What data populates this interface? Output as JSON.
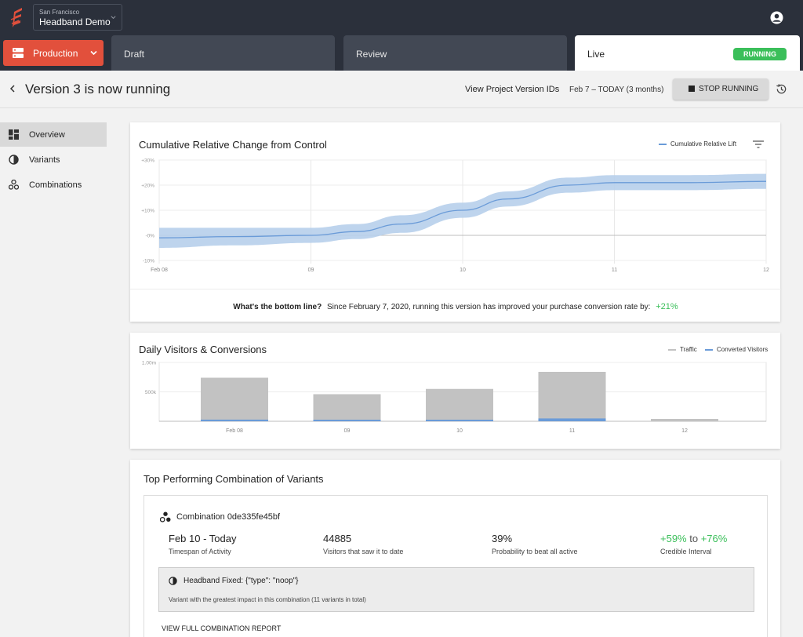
{
  "app": {
    "project_city": "San Francisco",
    "project_name": "Headband Demo",
    "environment": "Production"
  },
  "stages": {
    "draft": "Draft",
    "review": "Review",
    "live": "Live",
    "running_badge": "RUNNING"
  },
  "header": {
    "title": "Version 3 is now running",
    "view_ids": "View Project Version IDs",
    "date_range": "Feb 7 – TODAY (3 months)",
    "stop_button": "STOP RUNNING"
  },
  "sidebar": {
    "items": [
      {
        "label": "Overview",
        "icon": "dashboard-icon"
      },
      {
        "label": "Variants",
        "icon": "half-circle-icon"
      },
      {
        "label": "Combinations",
        "icon": "molecule-icon"
      }
    ]
  },
  "cumulative_card": {
    "title": "Cumulative Relative Change from Control",
    "legend": "Cumulative Relative Lift",
    "bottom_line_q": "What's the bottom line?",
    "bottom_line_text": "Since February 7, 2020, running this version has improved your purchase conversion rate by:",
    "bottom_line_value": "+21%"
  },
  "daily_card": {
    "title": "Daily Visitors & Conversions",
    "legend_traffic": "Traffic",
    "legend_converted": "Converted Visitors"
  },
  "combo_card": {
    "title": "Top Performing Combination of Variants",
    "combination_name": "Combination 0de335fe45bf",
    "timespan_value": "Feb 10 - Today",
    "timespan_label": "Timespan of Activity",
    "visitors_value": "44885",
    "visitors_label": "Visitors that saw it to date",
    "probability_value": "39%",
    "probability_label": "Probability to beat all active",
    "interval_low": "+59%",
    "interval_to": "to",
    "interval_high": "+76%",
    "interval_label": "Credible Interval",
    "variant_name": "Headband Fixed: {\"type\": \"noop\"}",
    "variant_desc": "Variant with the greatest impact in this combination (11 variants in total)",
    "full_report": "VIEW FULL COMBINATION REPORT"
  },
  "colors": {
    "accent": "#e2503c",
    "running": "#3bbf5a",
    "topbar": "#2b303b",
    "lift_line": "#6a9bd8",
    "band": "#b7cfeb",
    "traffic": "#c2c2c2",
    "converted": "#6a9bd8"
  },
  "chart_data": [
    {
      "type": "line",
      "title": "Cumulative Relative Change from Control",
      "x_ticks": [
        "Feb 08",
        "09",
        "10",
        "11",
        "12"
      ],
      "y_ticks": [
        "+30%",
        "+20%",
        "+10%",
        "-0%",
        "-10%"
      ],
      "ylim": [
        -10,
        30
      ],
      "series": [
        {
          "name": "Cumulative Relative Lift",
          "x": [
            0,
            0.5,
            1,
            1.3,
            1.6,
            2,
            2.3,
            2.7,
            3,
            3.5,
            4
          ],
          "y": [
            -1,
            -0.5,
            0,
            1.5,
            4.5,
            10,
            14.5,
            20,
            21,
            21,
            21.5
          ],
          "lower": [
            -5,
            -4,
            -3,
            -1.5,
            1,
            7,
            11.5,
            17,
            18,
            18,
            18.5
          ],
          "upper": [
            3,
            3,
            3,
            4.5,
            8,
            13,
            17.5,
            23,
            24,
            24,
            24.5
          ]
        }
      ],
      "grid": true,
      "legend": "top-right"
    },
    {
      "type": "bar",
      "title": "Daily Visitors & Conversions",
      "categories": [
        "Feb 08",
        "09",
        "10",
        "11",
        "12"
      ],
      "y_ticks": [
        "1.00m",
        "500k"
      ],
      "ylim": [
        0,
        1000000
      ],
      "series": [
        {
          "name": "Traffic",
          "values": [
            740000,
            460000,
            550000,
            840000,
            40000
          ]
        },
        {
          "name": "Converted Visitors",
          "values": [
            28000,
            10000,
            22000,
            48000,
            0
          ]
        }
      ],
      "legend": "top-right"
    }
  ]
}
